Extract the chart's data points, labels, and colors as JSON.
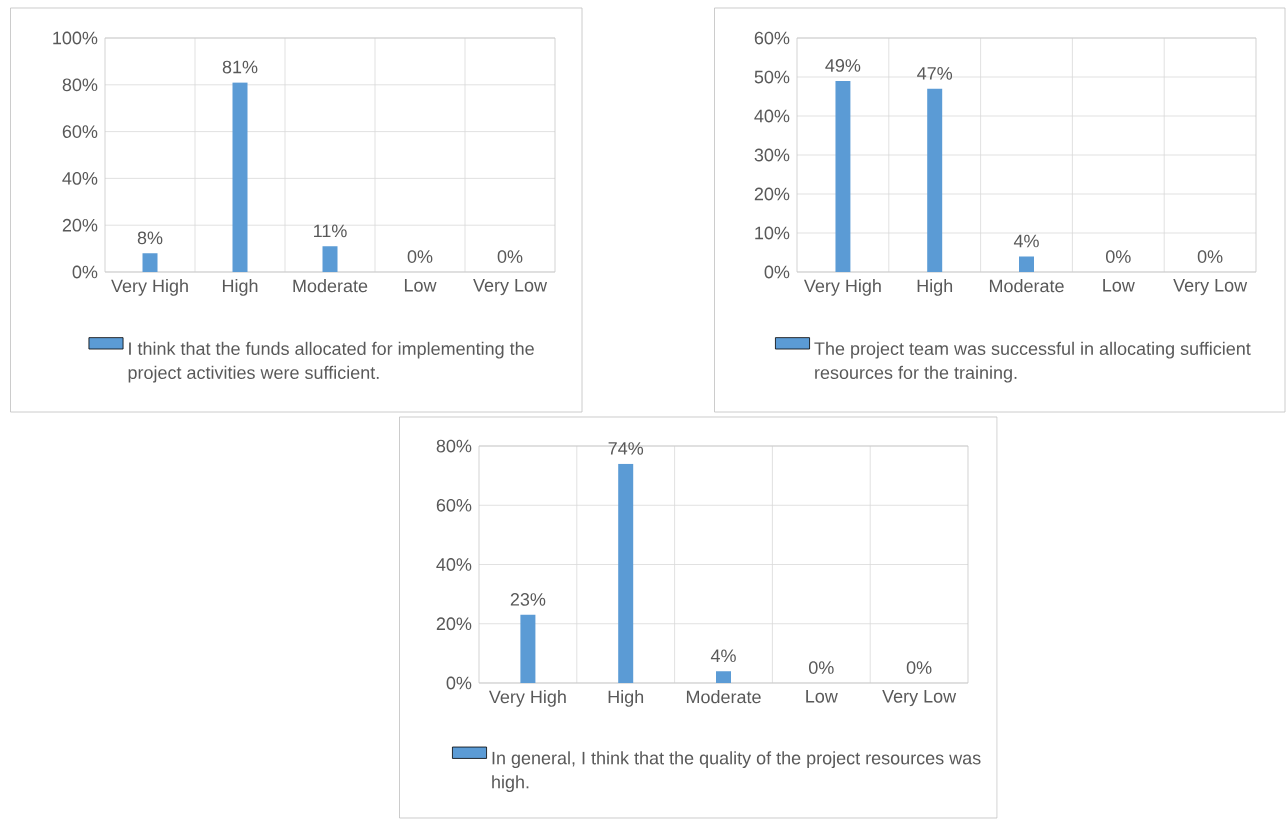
{
  "chart_data": [
    {
      "type": "bar",
      "categories": [
        "Very High",
        "High",
        "Moderate",
        "Low",
        "Very Low"
      ],
      "series": [
        {
          "name": "I think that the funds allocated for implementing the project activities were sufficient.",
          "color": "#5b9bd5",
          "values": [
            8,
            81,
            11,
            0,
            0
          ],
          "value_labels": [
            "8%",
            "81%",
            "11%",
            "0%",
            "0%"
          ]
        }
      ],
      "ylim": [
        0,
        100
      ],
      "yticks": [
        {
          "value": 0,
          "label": "0%"
        },
        {
          "value": 20,
          "label": "20%"
        },
        {
          "value": 40,
          "label": "40%"
        },
        {
          "value": 60,
          "label": "60%"
        },
        {
          "value": 80,
          "label": "80%"
        },
        {
          "value": 100,
          "label": "100%"
        }
      ],
      "grid": true,
      "legend": "bottom"
    },
    {
      "type": "bar",
      "categories": [
        "Very High",
        "High",
        "Moderate",
        "Low",
        "Very Low"
      ],
      "series": [
        {
          "name": "The project team was successful in allocating sufficient resources for the training.",
          "color": "#5b9bd5",
          "values": [
            49,
            47,
            4,
            0,
            0
          ],
          "value_labels": [
            "49%",
            "47%",
            "4%",
            "0%",
            "0%"
          ]
        }
      ],
      "ylim": [
        0,
        60
      ],
      "yticks": [
        {
          "value": 0,
          "label": "0%"
        },
        {
          "value": 10,
          "label": "10%"
        },
        {
          "value": 20,
          "label": "20%"
        },
        {
          "value": 30,
          "label": "30%"
        },
        {
          "value": 40,
          "label": "40%"
        },
        {
          "value": 50,
          "label": "50%"
        },
        {
          "value": 60,
          "label": "60%"
        }
      ],
      "grid": true,
      "legend": "bottom"
    },
    {
      "type": "bar",
      "categories": [
        "Very High",
        "High",
        "Moderate",
        "Low",
        "Very Low"
      ],
      "series": [
        {
          "name": "In general, I think that the quality of the project resources was high.",
          "color": "#5b9bd5",
          "values": [
            23,
            74,
            4,
            0,
            0
          ],
          "value_labels": [
            "23%",
            "74%",
            "4%",
            "0%",
            "0%"
          ]
        }
      ],
      "ylim": [
        0,
        80
      ],
      "yticks": [
        {
          "value": 0,
          "label": "0%"
        },
        {
          "value": 20,
          "label": "20%"
        },
        {
          "value": 40,
          "label": "40%"
        },
        {
          "value": 60,
          "label": "60%"
        },
        {
          "value": 80,
          "label": "80%"
        }
      ],
      "grid": true,
      "legend": "bottom"
    }
  ]
}
